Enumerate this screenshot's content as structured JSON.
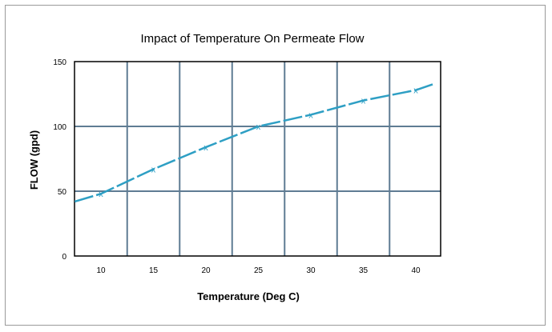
{
  "chart_data": {
    "type": "line",
    "title": "Impact of Temperature On Permeate Flow",
    "xlabel": "Temperature (Deg C)",
    "ylabel": "FLOW (gpd)",
    "x_ticks": [
      10,
      15,
      20,
      25,
      30,
      35,
      40
    ],
    "y_ticks": [
      0,
      50,
      100,
      150
    ],
    "ylim": [
      0,
      150
    ],
    "grid": true,
    "series": [
      {
        "color": "#2e9fc4",
        "marker": "x",
        "x": [
          10,
          15,
          20,
          25,
          30,
          35,
          40
        ],
        "y": [
          48,
          67,
          84,
          100,
          109,
          120,
          128
        ]
      }
    ],
    "line_extent": {
      "start": {
        "x": 7.5,
        "y": 42
      },
      "end": {
        "x": 41.8,
        "y": 133
      }
    }
  }
}
